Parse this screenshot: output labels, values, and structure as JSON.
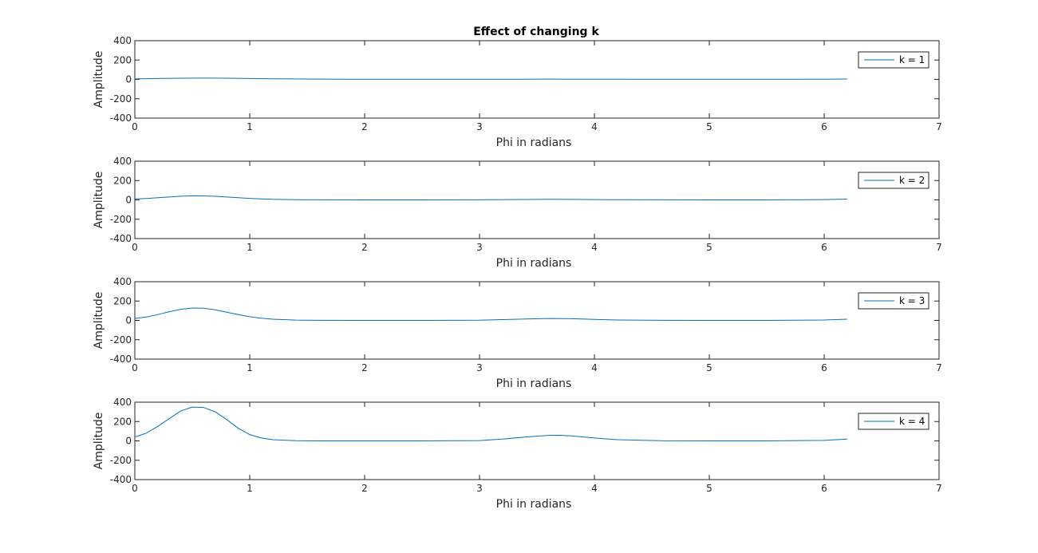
{
  "figure": {
    "title": "Effect of changing k"
  },
  "chart_data": [
    {
      "type": "line",
      "title": "Effect of changing k",
      "xlabel": "Phi in radians",
      "ylabel": "Amplitude",
      "xlim": [
        0,
        7
      ],
      "ylim": [
        -400,
        400
      ],
      "xticks": [
        0,
        1,
        2,
        3,
        4,
        5,
        6,
        7
      ],
      "yticks": [
        -400,
        -200,
        0,
        200,
        400
      ],
      "grid": false,
      "legend_position": "top-right",
      "series": [
        {
          "name": "k = 1",
          "color": "#0072BD",
          "x": [
            0,
            0.2,
            0.4,
            0.6,
            0.8,
            1.0,
            1.2,
            1.6,
            2.0,
            2.5,
            3.0,
            3.4,
            3.6,
            3.8,
            4.2,
            4.6,
            5.0,
            5.5,
            6.0,
            6.2
          ],
          "y": [
            5,
            9,
            12,
            13,
            12,
            9,
            6,
            3,
            1,
            0.5,
            1,
            2,
            3,
            2.5,
            1.5,
            0.8,
            0.5,
            0.7,
            2.5,
            4
          ]
        }
      ]
    },
    {
      "type": "line",
      "xlabel": "Phi in radians",
      "ylabel": "Amplitude",
      "xlim": [
        0,
        7
      ],
      "ylim": [
        -400,
        400
      ],
      "xticks": [
        0,
        1,
        2,
        3,
        4,
        5,
        6,
        7
      ],
      "yticks": [
        -400,
        -200,
        0,
        200,
        400
      ],
      "grid": false,
      "legend_position": "top-right",
      "series": [
        {
          "name": "k = 2",
          "color": "#0072BD",
          "x": [
            0,
            0.1,
            0.2,
            0.3,
            0.4,
            0.5,
            0.6,
            0.7,
            0.8,
            0.9,
            1.0,
            1.1,
            1.2,
            1.4,
            1.6,
            2.0,
            2.5,
            3.0,
            3.4,
            3.6,
            3.8,
            4.2,
            4.6,
            5.0,
            5.5,
            6.0,
            6.2
          ],
          "y": [
            10,
            15,
            22,
            30,
            38,
            42,
            41,
            37,
            30,
            23,
            16,
            10,
            6,
            2,
            0.5,
            0,
            0,
            1,
            4,
            6,
            5,
            2,
            0.5,
            0,
            0,
            3,
            8
          ]
        }
      ]
    },
    {
      "type": "line",
      "xlabel": "Phi in radians",
      "ylabel": "Amplitude",
      "xlim": [
        0,
        7
      ],
      "ylim": [
        -400,
        400
      ],
      "xticks": [
        0,
        1,
        2,
        3,
        4,
        5,
        6,
        7
      ],
      "yticks": [
        -400,
        -200,
        0,
        200,
        400
      ],
      "grid": false,
      "legend_position": "top-right",
      "series": [
        {
          "name": "k = 3",
          "color": "#0072BD",
          "x": [
            0,
            0.1,
            0.2,
            0.3,
            0.4,
            0.5,
            0.6,
            0.7,
            0.8,
            0.9,
            1.0,
            1.1,
            1.2,
            1.4,
            1.6,
            2.0,
            2.5,
            3.0,
            3.2,
            3.4,
            3.6,
            3.8,
            4.0,
            4.2,
            4.6,
            5.0,
            5.5,
            6.0,
            6.2
          ],
          "y": [
            20,
            35,
            60,
            90,
            115,
            128,
            125,
            110,
            85,
            60,
            38,
            22,
            12,
            3,
            0.5,
            0,
            0,
            2,
            8,
            15,
            20,
            17,
            10,
            4,
            0.5,
            0,
            0,
            4,
            12
          ]
        }
      ]
    },
    {
      "type": "line",
      "xlabel": "Phi in radians",
      "ylabel": "Amplitude",
      "xlim": [
        0,
        7
      ],
      "ylim": [
        -400,
        400
      ],
      "xticks": [
        0,
        1,
        2,
        3,
        4,
        5,
        6,
        7
      ],
      "yticks": [
        -400,
        -200,
        0,
        200,
        400
      ],
      "grid": false,
      "legend_position": "top-right",
      "series": [
        {
          "name": "k = 4",
          "color": "#0072BD",
          "x": [
            0,
            0.1,
            0.2,
            0.3,
            0.4,
            0.5,
            0.6,
            0.7,
            0.8,
            0.9,
            1.0,
            1.1,
            1.2,
            1.4,
            1.6,
            2.0,
            2.5,
            3.0,
            3.2,
            3.4,
            3.6,
            3.7,
            3.8,
            4.0,
            4.2,
            4.6,
            5.0,
            5.5,
            6.0,
            6.2
          ],
          "y": [
            40,
            80,
            150,
            230,
            310,
            350,
            345,
            300,
            220,
            130,
            65,
            30,
            12,
            2,
            0,
            0,
            0,
            3,
            18,
            40,
            57,
            58,
            52,
            30,
            12,
            1,
            0,
            0,
            5,
            18
          ]
        }
      ]
    }
  ]
}
